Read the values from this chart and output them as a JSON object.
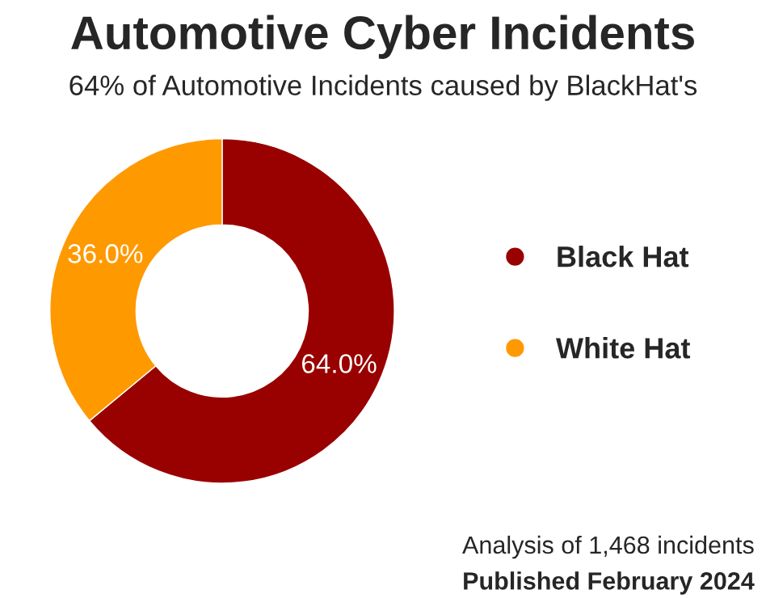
{
  "chart_data": {
    "type": "donut",
    "title": "Automotive Cyber Incidents",
    "subtitle": "64% of Automotive Incidents caused by BlackHat's",
    "categories": [
      "Black Hat",
      "White Hat"
    ],
    "values": [
      64.0,
      36.0
    ],
    "colors": [
      "#990000",
      "#ff9900"
    ],
    "value_labels": [
      "64.0%",
      "36.0%"
    ],
    "legend": "right",
    "annotations": [
      "Analysis of 1,468 incidents",
      "Published February 2024"
    ]
  }
}
